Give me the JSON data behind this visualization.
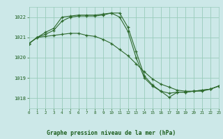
{
  "background_color": "#cce8e8",
  "grid_color": "#99ccbb",
  "line_color": "#2d6a2d",
  "title": "Graphe pression niveau de la mer (hPa)",
  "title_color": "#1a5c1a",
  "xlim": [
    0,
    23
  ],
  "ylim": [
    1017.5,
    1022.5
  ],
  "yticks": [
    1018,
    1019,
    1020,
    1021,
    1022
  ],
  "xticks": [
    0,
    1,
    2,
    3,
    4,
    5,
    6,
    7,
    8,
    9,
    10,
    11,
    12,
    13,
    14,
    15,
    16,
    17,
    18,
    19,
    20,
    21,
    22,
    23
  ],
  "series1_x": [
    0,
    1,
    2,
    3,
    4,
    5,
    6,
    7,
    8,
    9,
    10,
    11,
    12,
    13,
    14,
    15,
    16,
    17,
    18,
    19,
    20,
    21,
    22,
    23
  ],
  "series1_y": [
    1020.7,
    1021.0,
    1021.25,
    1021.45,
    1022.0,
    1022.05,
    1022.1,
    1022.1,
    1022.1,
    1022.15,
    1022.2,
    1022.2,
    1021.5,
    1020.3,
    1019.1,
    1018.65,
    1018.35,
    1018.05,
    1018.3,
    1018.3,
    1018.35,
    1018.35,
    1018.45,
    1018.6
  ],
  "series2_x": [
    0,
    1,
    2,
    3,
    4,
    5,
    6,
    7,
    8,
    9,
    10,
    11,
    12,
    13,
    14,
    15,
    16,
    17,
    18,
    19,
    20,
    21,
    22,
    23
  ],
  "series2_y": [
    1020.7,
    1021.0,
    1021.05,
    1021.1,
    1021.15,
    1021.2,
    1021.2,
    1021.1,
    1021.05,
    1020.9,
    1020.7,
    1020.4,
    1020.1,
    1019.7,
    1019.3,
    1018.95,
    1018.7,
    1018.55,
    1018.4,
    1018.35,
    1018.35,
    1018.4,
    1018.45,
    1018.6
  ],
  "series3_x": [
    0,
    1,
    2,
    3,
    4,
    5,
    6,
    7,
    8,
    9,
    10,
    11,
    12,
    13,
    14,
    15,
    16,
    17,
    18,
    19,
    20,
    21,
    22,
    23
  ],
  "series3_y": [
    1020.7,
    1021.0,
    1021.15,
    1021.35,
    1021.8,
    1022.0,
    1022.05,
    1022.05,
    1022.05,
    1022.1,
    1022.2,
    1022.0,
    1021.3,
    1020.0,
    1019.0,
    1018.6,
    1018.35,
    1018.25,
    1018.3,
    1018.3,
    1018.35,
    1018.4,
    1018.45,
    1018.6
  ]
}
